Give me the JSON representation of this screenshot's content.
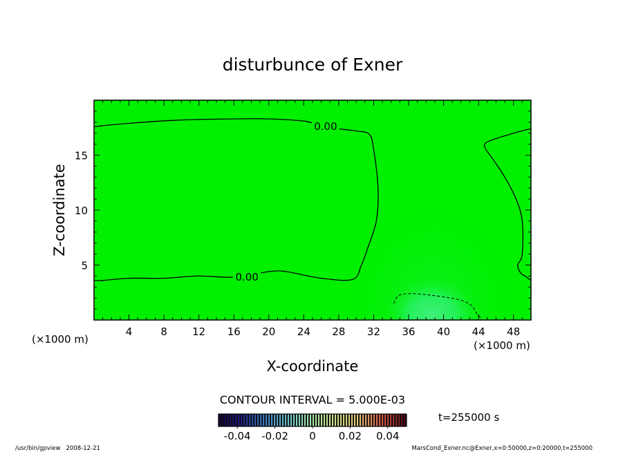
{
  "chart_data": {
    "type": "heatmap",
    "title": "disturbunce of Exner",
    "xlabel": "X-coordinate",
    "ylabel": "Z-coordinate",
    "x_unit": "(×1000 m)",
    "x_unit_right": "(×1000 m)",
    "y_unit": "(×1000 m)",
    "xlim": [
      0,
      50
    ],
    "ylim": [
      0,
      20
    ],
    "x_ticks": [
      4,
      8,
      12,
      16,
      20,
      24,
      28,
      32,
      36,
      40,
      44,
      48
    ],
    "y_ticks": [
      5,
      10,
      15
    ],
    "field_description": "near-uniform green field (~0.00); slightly lighter region centered near x=38, z=1",
    "contours": [
      {
        "level": "0.00",
        "label": "0.00",
        "style": "solid",
        "x": [
          0,
          4,
          10,
          16,
          20,
          24,
          26,
          28,
          30,
          31.5,
          32,
          32.5,
          32.3,
          31.3,
          30.6,
          29.6,
          26,
          22,
          20,
          16,
          12,
          8,
          4,
          1,
          0
        ],
        "z": [
          17.6,
          17.9,
          18.2,
          18.3,
          18.3,
          18.1,
          17.7,
          17.4,
          17.2,
          16.9,
          15.5,
          12,
          9,
          6.5,
          5,
          3.7,
          3.8,
          4.4,
          4.4,
          3.9,
          4.0,
          3.8,
          3.8,
          3.6,
          3.6
        ]
      },
      {
        "level": "0.00",
        "label": "",
        "style": "solid",
        "x": [
          50,
          48,
          45,
          44.8,
          45.5,
          47,
          48.3,
          49,
          49,
          48.5,
          48.8,
          49.5,
          50
        ],
        "z": [
          17.4,
          17.0,
          16.2,
          15.6,
          14.8,
          13.0,
          11.0,
          9.0,
          6.0,
          5.0,
          4.3,
          3.9,
          3.6
        ]
      },
      {
        "level": "-0.005",
        "label": "",
        "style": "dashed",
        "x": [
          34.3,
          34.8,
          36,
          38,
          40,
          42,
          43.2,
          43.8,
          44.5
        ],
        "z": [
          1.5,
          2.2,
          2.4,
          2.3,
          2.1,
          1.8,
          1.3,
          0.6,
          0
        ]
      }
    ],
    "contour_labels": [
      {
        "text": "0.00",
        "x": 26.5,
        "z": 17.6
      },
      {
        "text": "0.00",
        "x": 17.5,
        "z": 3.9
      }
    ],
    "contour_interval_text": "CONTOUR INTERVAL = 5.000E-03",
    "colorbar": {
      "ticks": [
        "-0.04",
        "-0.02",
        "0",
        "0.02",
        "0.04"
      ],
      "range": [
        -0.05,
        0.05
      ]
    },
    "time_text": "t=255000 s",
    "colors": {
      "field": "#00f000",
      "field_light": "#2ef05a",
      "contour": "#000000"
    }
  },
  "footer": {
    "left": "/usr/bin/gpview   2008-12-21",
    "right": "MarsCond_Exner.nc@Exner,x=0:50000,z=0:20000,t=255000"
  }
}
